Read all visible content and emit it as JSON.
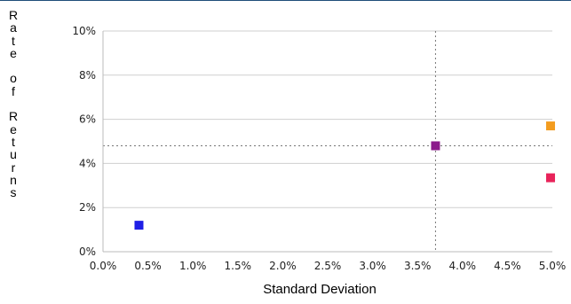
{
  "chart_data": {
    "type": "scatter",
    "title": "",
    "xlabel": "Standard Deviation",
    "ylabel": "Rate of Returns",
    "ylabel_vertical": "R\na\nt\ne\n\no\nf\n\nR\ne\nt\nu\nr\nn\ns",
    "xlim": [
      0,
      5
    ],
    "ylim": [
      0,
      10
    ],
    "x_ticks": [
      "0.0%",
      "0.5%",
      "1.0%",
      "1.5%",
      "2.0%",
      "2.5%",
      "3.0%",
      "3.5%",
      "4.0%",
      "4.5%",
      "5.0%"
    ],
    "y_ticks": [
      "0%",
      "2%",
      "4%",
      "6%",
      "8%",
      "10%"
    ],
    "grid": "horizontal",
    "legend": "none",
    "points": [
      {
        "x": 0.4,
        "y": 1.2,
        "color": "#1f1fe6"
      },
      {
        "x": 3.7,
        "y": 4.8,
        "color": "#8b1a8b"
      },
      {
        "x": 4.98,
        "y": 5.7,
        "color": "#f39c1f"
      },
      {
        "x": 4.98,
        "y": 3.35,
        "color": "#e8235a"
      }
    ],
    "reference_lines": {
      "x": 3.7,
      "y": 4.8
    }
  }
}
